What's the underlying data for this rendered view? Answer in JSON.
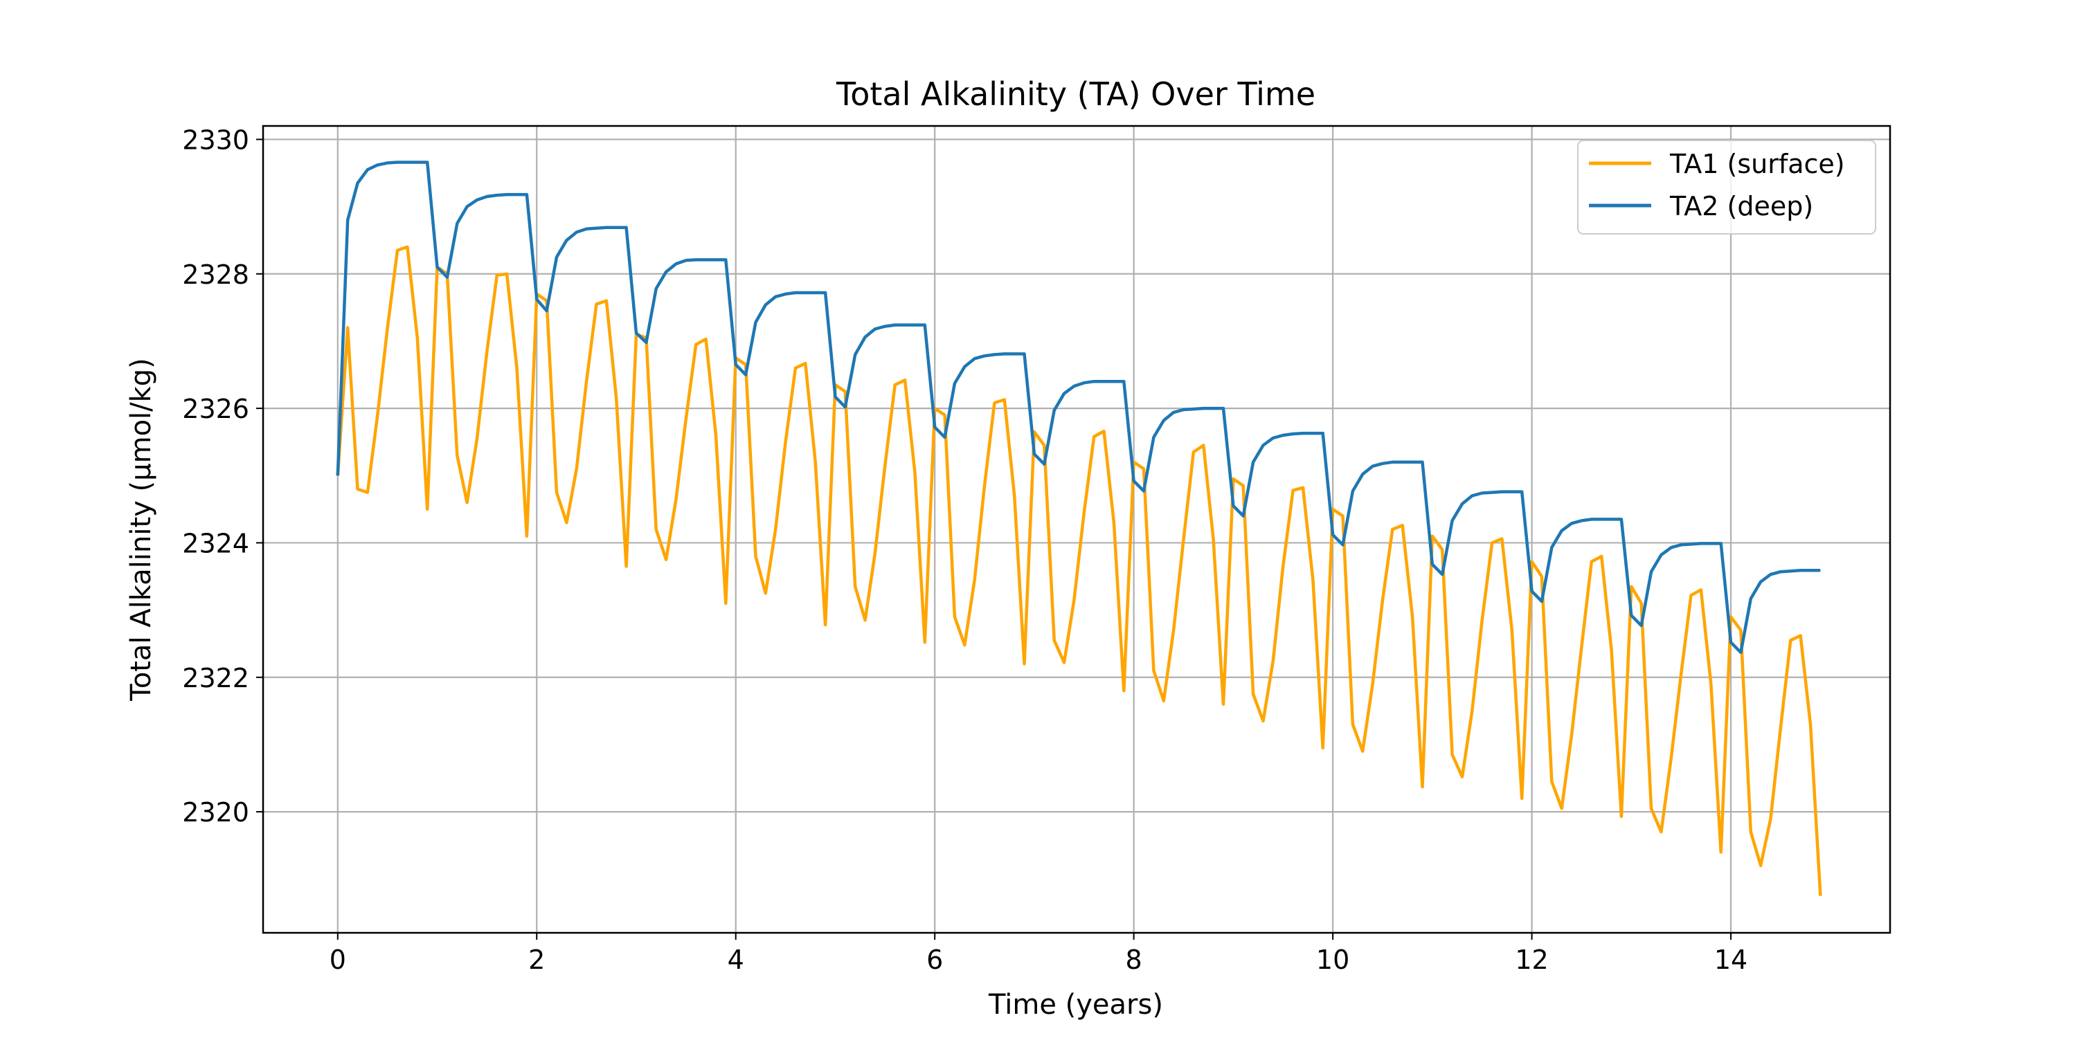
{
  "chart_data": {
    "type": "line",
    "title": "Total Alkalinity (TA) Over Time",
    "xlabel": "Time (years)",
    "ylabel": "Total Alkalinity (µmol/kg)",
    "xlim": [
      -0.75,
      15.6
    ],
    "ylim": [
      2318.2,
      2330.2
    ],
    "x_ticks": [
      0,
      2,
      4,
      6,
      8,
      10,
      12,
      14
    ],
    "x_tick_labels": [
      "0",
      "2",
      "4",
      "6",
      "8",
      "10",
      "12",
      "14"
    ],
    "y_ticks": [
      2320,
      2322,
      2324,
      2326,
      2328,
      2330
    ],
    "y_tick_labels": [
      "2320",
      "2322",
      "2324",
      "2326",
      "2328",
      "2330"
    ],
    "grid": true,
    "legend_position": "top-right",
    "series": [
      {
        "name": "TA1 (surface)",
        "color": "#FFA500",
        "x": [
          0.0,
          0.1,
          0.2,
          0.3,
          0.4,
          0.5,
          0.6,
          0.7,
          0.8,
          0.9,
          1.0,
          1.1,
          1.2,
          1.3,
          1.4,
          1.5,
          1.6,
          1.7,
          1.8,
          1.9,
          2.0,
          2.1,
          2.2,
          2.3,
          2.4,
          2.5,
          2.6,
          2.7,
          2.8,
          2.9,
          3.0,
          3.1,
          3.2,
          3.3,
          3.4,
          3.5,
          3.6,
          3.7,
          3.8,
          3.9,
          4.0,
          4.1,
          4.2,
          4.3,
          4.4,
          4.5,
          4.6,
          4.7,
          4.8,
          4.9,
          5.0,
          5.1,
          5.2,
          5.3,
          5.4,
          5.5,
          5.6,
          5.7,
          5.8,
          5.9,
          6.0,
          6.1,
          6.2,
          6.3,
          6.4,
          6.5,
          6.6,
          6.7,
          6.8,
          6.9,
          7.0,
          7.1,
          7.2,
          7.3,
          7.4,
          7.5,
          7.6,
          7.7,
          7.8,
          7.9,
          8.0,
          8.1,
          8.2,
          8.3,
          8.4,
          8.5,
          8.6,
          8.7,
          8.8,
          8.9,
          9.0,
          9.1,
          9.2,
          9.3,
          9.4,
          9.5,
          9.6,
          9.7,
          9.8,
          9.9,
          10.0,
          10.1,
          10.2,
          10.3,
          10.4,
          10.5,
          10.6,
          10.7,
          10.8,
          10.9,
          11.0,
          11.1,
          11.2,
          11.3,
          11.4,
          11.5,
          11.6,
          11.7,
          11.8,
          11.9,
          12.0,
          12.1,
          12.2,
          12.3,
          12.4,
          12.5,
          12.6,
          12.7,
          12.8,
          12.9,
          13.0,
          13.1,
          13.2,
          13.3,
          13.4,
          13.5,
          13.6,
          13.7,
          13.8,
          13.9,
          14.0,
          14.1,
          14.2,
          14.3,
          14.4,
          14.5,
          14.6,
          14.7,
          14.8,
          14.9
        ],
        "values": [
          2325.0,
          2327.2,
          2324.8,
          2324.75,
          2325.9,
          2327.2,
          2328.35,
          2328.4,
          2327.05,
          2324.5,
          2328.1,
          2328.0,
          2325.3,
          2324.6,
          2325.55,
          2326.85,
          2327.98,
          2328.0,
          2326.6,
          2324.1,
          2327.7,
          2327.6,
          2324.75,
          2324.3,
          2325.1,
          2326.4,
          2327.55,
          2327.6,
          2326.15,
          2323.65,
          2327.1,
          2327.05,
          2324.2,
          2323.75,
          2324.65,
          2325.85,
          2326.95,
          2327.03,
          2325.6,
          2323.1,
          2326.75,
          2326.65,
          2323.8,
          2323.25,
          2324.2,
          2325.5,
          2326.6,
          2326.67,
          2325.2,
          2322.78,
          2326.35,
          2326.25,
          2323.35,
          2322.85,
          2323.85,
          2325.15,
          2326.35,
          2326.42,
          2325.05,
          2322.52,
          2326.0,
          2325.9,
          2322.9,
          2322.48,
          2323.45,
          2324.85,
          2326.08,
          2326.13,
          2324.7,
          2322.2,
          2325.65,
          2325.45,
          2322.55,
          2322.22,
          2323.15,
          2324.45,
          2325.58,
          2325.66,
          2324.3,
          2321.8,
          2325.2,
          2325.1,
          2322.1,
          2321.65,
          2322.7,
          2324.05,
          2325.35,
          2325.45,
          2324.05,
          2321.6,
          2324.95,
          2324.85,
          2321.75,
          2321.35,
          2322.25,
          2323.65,
          2324.78,
          2324.82,
          2323.45,
          2320.95,
          2324.5,
          2324.4,
          2321.3,
          2320.9,
          2321.9,
          2323.15,
          2324.2,
          2324.26,
          2322.9,
          2320.37,
          2324.1,
          2323.9,
          2320.85,
          2320.52,
          2321.5,
          2322.85,
          2324.0,
          2324.06,
          2322.7,
          2320.2,
          2323.72,
          2323.5,
          2320.45,
          2320.05,
          2321.15,
          2322.45,
          2323.72,
          2323.8,
          2322.4,
          2319.93,
          2323.35,
          2323.1,
          2320.05,
          2319.7,
          2320.8,
          2322.05,
          2323.22,
          2323.3,
          2321.9,
          2319.4,
          2322.9,
          2322.7,
          2319.7,
          2319.2,
          2319.9,
          2321.25,
          2322.55,
          2322.62,
          2321.3,
          2318.75
        ]
      },
      {
        "name": "TA2 (deep)",
        "color": "#1F77B4",
        "x": [
          0.0,
          0.1,
          0.2,
          0.3,
          0.4,
          0.5,
          0.6,
          0.7,
          0.8,
          0.9,
          1.0,
          1.1,
          1.2,
          1.3,
          1.4,
          1.5,
          1.6,
          1.7,
          1.8,
          1.9,
          2.0,
          2.1,
          2.2,
          2.3,
          2.4,
          2.5,
          2.6,
          2.7,
          2.8,
          2.9,
          3.0,
          3.1,
          3.2,
          3.3,
          3.4,
          3.5,
          3.6,
          3.7,
          3.8,
          3.9,
          4.0,
          4.1,
          4.2,
          4.3,
          4.4,
          4.5,
          4.6,
          4.7,
          4.8,
          4.9,
          5.0,
          5.1,
          5.2,
          5.3,
          5.4,
          5.5,
          5.6,
          5.7,
          5.8,
          5.9,
          6.0,
          6.1,
          6.2,
          6.3,
          6.4,
          6.5,
          6.6,
          6.7,
          6.8,
          6.9,
          7.0,
          7.1,
          7.2,
          7.3,
          7.4,
          7.5,
          7.6,
          7.7,
          7.8,
          7.9,
          8.0,
          8.1,
          8.2,
          8.3,
          8.4,
          8.5,
          8.6,
          8.7,
          8.8,
          8.9,
          9.0,
          9.1,
          9.2,
          9.3,
          9.4,
          9.5,
          9.6,
          9.7,
          9.8,
          9.9,
          10.0,
          10.1,
          10.2,
          10.3,
          10.4,
          10.5,
          10.6,
          10.7,
          10.8,
          10.9,
          11.0,
          11.1,
          11.2,
          11.3,
          11.4,
          11.5,
          11.6,
          11.7,
          11.8,
          11.9,
          12.0,
          12.1,
          12.2,
          12.3,
          12.4,
          12.5,
          12.6,
          12.7,
          12.8,
          12.9,
          13.0,
          13.1,
          13.2,
          13.3,
          13.4,
          13.5,
          13.6,
          13.7,
          13.8,
          13.9,
          14.0,
          14.1,
          14.2,
          14.3,
          14.4,
          14.5,
          14.6,
          14.7,
          14.8,
          14.9
        ],
        "values": [
          2325.0,
          2328.8,
          2329.35,
          2329.55,
          2329.62,
          2329.65,
          2329.66,
          2329.66,
          2329.66,
          2329.66,
          2328.1,
          2327.95,
          2328.75,
          2329.0,
          2329.1,
          2329.15,
          2329.17,
          2329.18,
          2329.18,
          2329.18,
          2327.62,
          2327.45,
          2328.25,
          2328.5,
          2328.62,
          2328.67,
          2328.68,
          2328.69,
          2328.69,
          2328.69,
          2327.12,
          2326.98,
          2327.78,
          2328.03,
          2328.15,
          2328.2,
          2328.21,
          2328.21,
          2328.21,
          2328.21,
          2326.65,
          2326.5,
          2327.28,
          2327.54,
          2327.66,
          2327.7,
          2327.72,
          2327.72,
          2327.72,
          2327.72,
          2326.17,
          2326.02,
          2326.8,
          2327.06,
          2327.18,
          2327.22,
          2327.24,
          2327.24,
          2327.24,
          2327.24,
          2325.72,
          2325.57,
          2326.37,
          2326.62,
          2326.74,
          2326.78,
          2326.8,
          2326.81,
          2326.81,
          2326.81,
          2325.32,
          2325.17,
          2325.97,
          2326.22,
          2326.33,
          2326.38,
          2326.4,
          2326.4,
          2326.4,
          2326.4,
          2324.92,
          2324.77,
          2325.57,
          2325.82,
          2325.94,
          2325.98,
          2325.99,
          2326.0,
          2326.0,
          2326.0,
          2324.55,
          2324.4,
          2325.2,
          2325.45,
          2325.56,
          2325.6,
          2325.62,
          2325.63,
          2325.63,
          2325.63,
          2324.12,
          2323.97,
          2324.77,
          2325.02,
          2325.14,
          2325.18,
          2325.2,
          2325.2,
          2325.2,
          2325.2,
          2323.68,
          2323.53,
          2324.33,
          2324.58,
          2324.7,
          2324.74,
          2324.75,
          2324.76,
          2324.76,
          2324.76,
          2323.28,
          2323.13,
          2323.93,
          2324.18,
          2324.29,
          2324.33,
          2324.35,
          2324.35,
          2324.35,
          2324.35,
          2322.92,
          2322.77,
          2323.57,
          2323.82,
          2323.93,
          2323.97,
          2323.98,
          2323.99,
          2323.99,
          2323.99,
          2322.52,
          2322.37,
          2323.17,
          2323.42,
          2323.53,
          2323.57,
          2323.58,
          2323.59,
          2323.59,
          2323.59
        ]
      }
    ]
  }
}
